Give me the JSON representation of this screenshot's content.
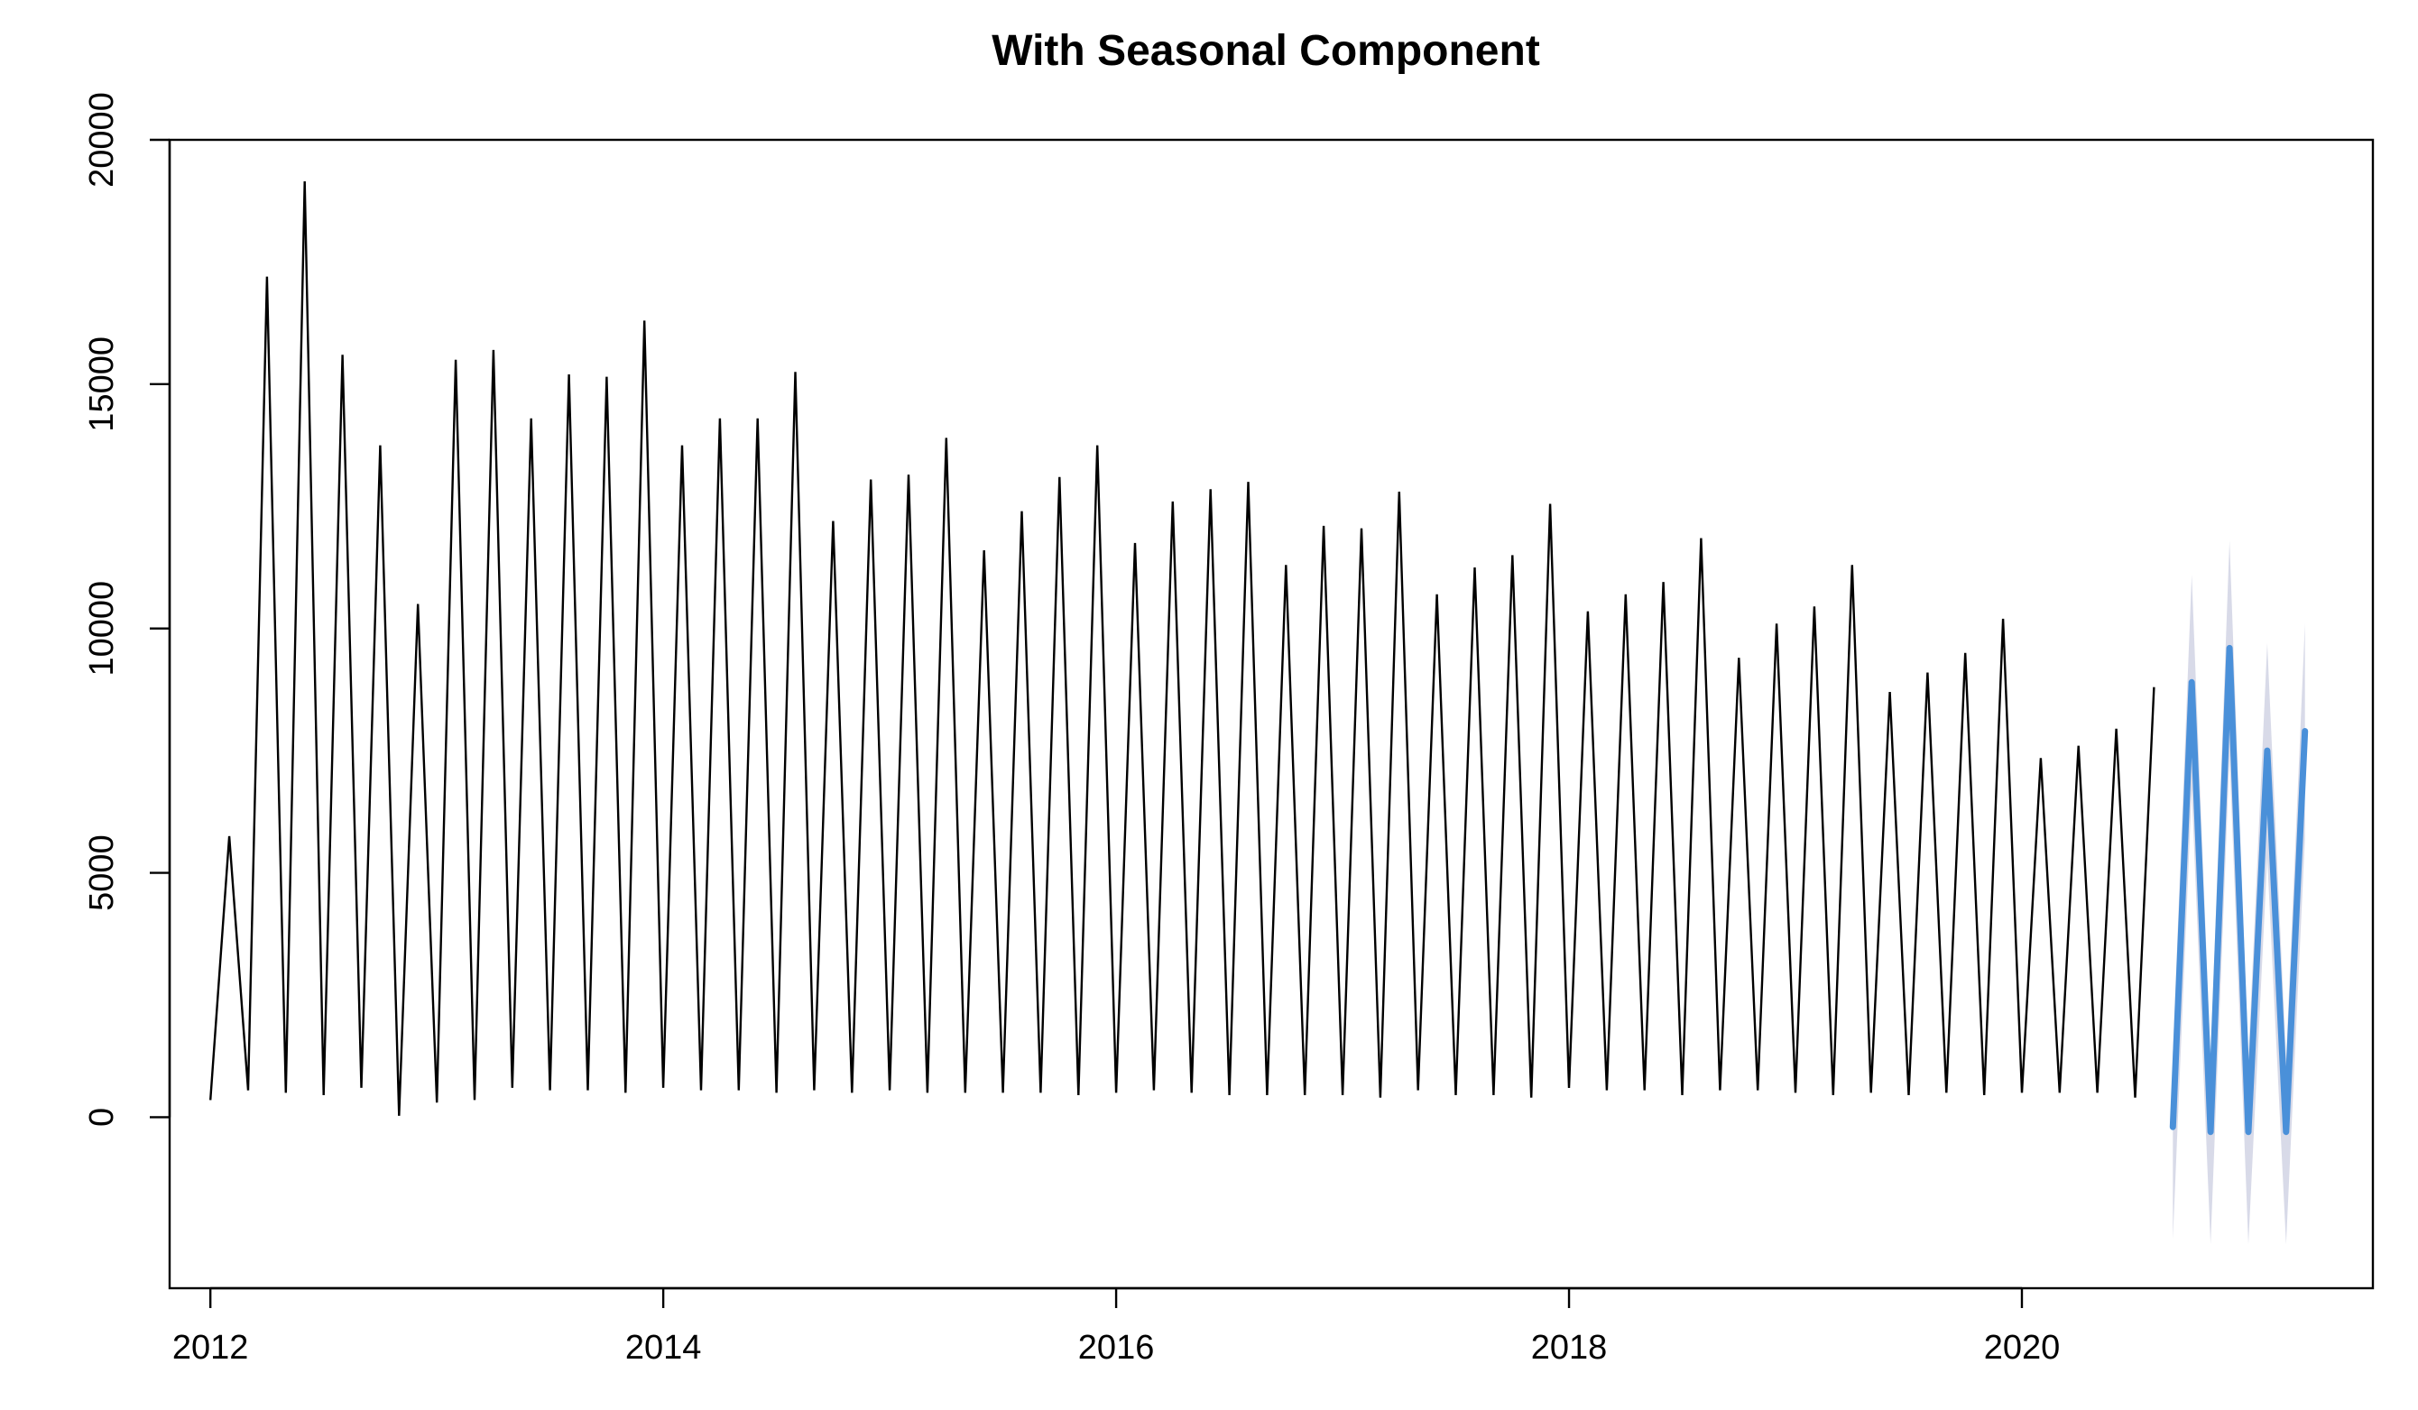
{
  "chart_data": {
    "type": "line",
    "title": "With Seasonal Component",
    "xlabel": "",
    "ylabel": "",
    "xlim": [
      2011.82,
      2021.55
    ],
    "ylim": [
      -3500,
      20000
    ],
    "x_ticks": [
      2012,
      2014,
      2016,
      2018,
      2020
    ],
    "x_tick_labels": [
      "2012",
      "2014",
      "2016",
      "2018",
      "2020"
    ],
    "y_ticks": [
      0,
      5000,
      10000,
      15000,
      20000
    ],
    "y_tick_labels": [
      "0",
      "5000",
      "10000",
      "15000",
      "20000"
    ],
    "grid": false,
    "legend": "none",
    "series": [
      {
        "kind": "observed",
        "color": "#000000",
        "start": 2012.0,
        "step": 0.0833333,
        "values": [
          350,
          5750,
          550,
          17200,
          500,
          19150,
          450,
          15600,
          600,
          13750,
          30,
          10500,
          300,
          15500,
          350,
          15700,
          600,
          14300,
          550,
          15200,
          550,
          15150,
          500,
          16300,
          600,
          13750,
          550,
          14300,
          550,
          14300,
          500,
          15250,
          550,
          12200,
          500,
          13050,
          550,
          13150,
          500,
          13900,
          500,
          11600,
          500,
          12400,
          500,
          13100,
          450,
          13750,
          500,
          11750,
          550,
          12600,
          500,
          12850,
          450,
          13000,
          450,
          11300,
          450,
          12100,
          450,
          12050,
          400,
          12800,
          550,
          10700,
          450,
          11250,
          450,
          11500,
          400,
          12550,
          600,
          10350,
          550,
          10700,
          550,
          10950,
          450,
          11850,
          550,
          9400,
          550,
          10100,
          500,
          10450,
          450,
          11300,
          500,
          8700,
          450,
          9100,
          500,
          9500,
          450,
          10200,
          500,
          7350,
          500,
          7600,
          500,
          7950,
          400,
          8800
        ]
      },
      {
        "kind": "forecast",
        "color": "#4a90d9",
        "start": 2020.6667,
        "step": 0.0833333,
        "values": [
          -200,
          8900,
          -300,
          9600,
          -300,
          7500,
          -300,
          7900
        ]
      },
      {
        "kind": "prediction-interval",
        "color": "#b8bcd6",
        "start": 2020.6667,
        "step": 0.0833333,
        "upper": [
          1300,
          11100,
          1200,
          11800,
          1200,
          9700,
          1200,
          10100
        ],
        "lower": [
          -2500,
          6700,
          -2600,
          7400,
          -2600,
          5300,
          -2600,
          5700
        ]
      }
    ]
  }
}
